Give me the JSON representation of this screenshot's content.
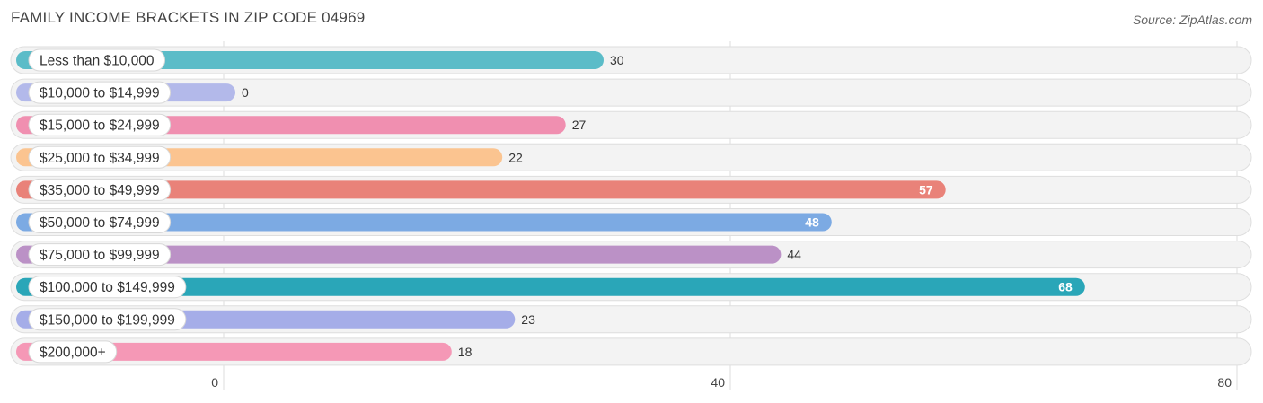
{
  "header": {
    "title": "FAMILY INCOME BRACKETS IN ZIP CODE 04969",
    "source": "Source: ZipAtlas.com"
  },
  "chart_data": {
    "type": "bar",
    "orientation": "horizontal",
    "title": "FAMILY INCOME BRACKETS IN ZIP CODE 04969",
    "categories": [
      "Less than $10,000",
      "$10,000 to $14,999",
      "$15,000 to $24,999",
      "$25,000 to $34,999",
      "$35,000 to $49,999",
      "$50,000 to $74,999",
      "$75,000 to $99,999",
      "$100,000 to $149,999",
      "$150,000 to $199,999",
      "$200,000+"
    ],
    "values": [
      30,
      0,
      27,
      22,
      57,
      48,
      44,
      68,
      23,
      18
    ],
    "colors": [
      "#5bbcc8",
      "#b3b9ea",
      "#f08fb0",
      "#fbc490",
      "#e98279",
      "#7caae3",
      "#bb91c6",
      "#2aa6b8",
      "#a5ade8",
      "#f598b6"
    ],
    "xlim": [
      0,
      80
    ],
    "xticks": [
      0,
      40,
      80
    ],
    "grid": true,
    "legend": "none"
  }
}
